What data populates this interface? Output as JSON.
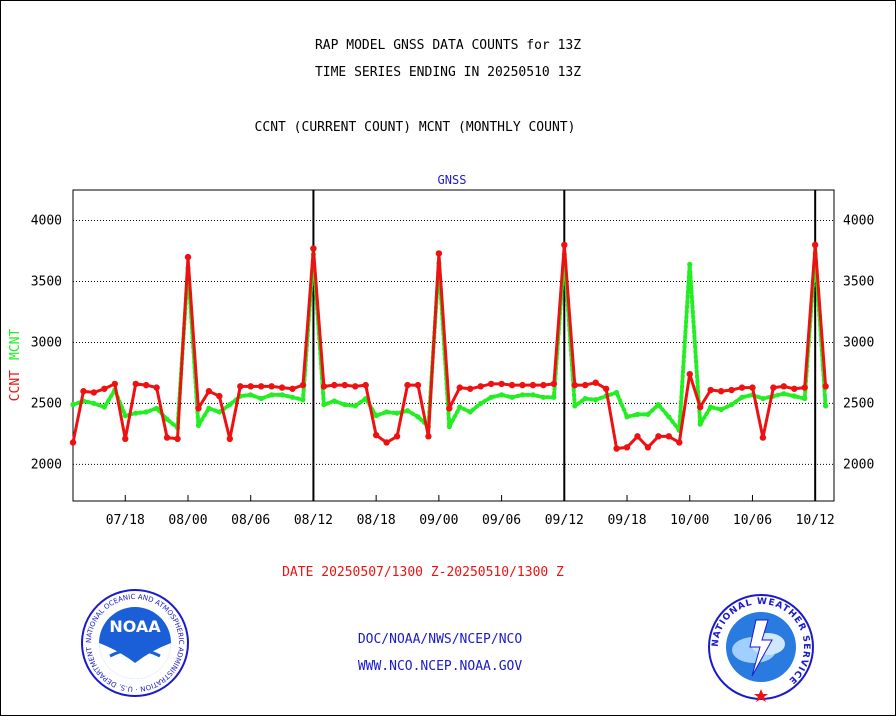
{
  "titles": {
    "line1": "RAP MODEL GNSS DATA COUNTS for 13Z",
    "line2": "TIME SERIES ENDING IN 20250510 13Z",
    "line3": "CCNT (CURRENT COUNT) MCNT (MONTHLY COUNT)"
  },
  "footer": {
    "date_range": "DATE 20250507/1300 Z-20250510/1300 Z",
    "credit_line1": "DOC/NOAA/NWS/NCEP/NCO",
    "credit_line2": "WWW.NCO.NCEP.NOAA.GOV"
  },
  "logos": {
    "noaa": "NOAA",
    "noaa_ring": "NATIONAL OCEANIC AND ATMOSPHERIC ADMINISTRATION · U.S. DEPARTMENT OF COMMERCE ·",
    "nws_ring": "NATIONAL WEATHER SERVICE"
  },
  "chart_data": {
    "type": "line",
    "panel_label": "GNSS",
    "ylabel_left": "CCNT",
    "ylabel_right": "MCNT",
    "ylim": [
      1700,
      4250
    ],
    "yticks": [
      2000,
      2500,
      3000,
      3500,
      4000
    ],
    "x_tick_labels": [
      "07/18",
      "08/00",
      "08/06",
      "08/12",
      "08/18",
      "09/00",
      "09/06",
      "09/12",
      "09/18",
      "10/00",
      "10/06",
      "10/12"
    ],
    "x_tick_hours": [
      5,
      11,
      17,
      23,
      29,
      35,
      41,
      47,
      53,
      59,
      65,
      71
    ],
    "x_range_hours": [
      0,
      72.8
    ],
    "day_boundaries_hours": [
      23,
      47,
      71
    ],
    "grid": "horizontal dotted",
    "series": [
      {
        "name": "CCNT",
        "color": "#ee1111",
        "values": [
          2180,
          2600,
          2590,
          2620,
          2660,
          2210,
          2660,
          2650,
          2630,
          2220,
          2210,
          3700,
          2460,
          2600,
          2560,
          2210,
          2640,
          2640,
          2640,
          2640,
          2630,
          2620,
          2650,
          3770,
          2640,
          2650,
          2650,
          2640,
          2650,
          2240,
          2180,
          2230,
          2650,
          2650,
          2230,
          3730,
          2460,
          2630,
          2620,
          2640,
          2660,
          2660,
          2650,
          2650,
          2650,
          2650,
          2660,
          3800,
          2650,
          2650,
          2670,
          2620,
          2130,
          2140,
          2230,
          2140,
          2230,
          2230,
          2180,
          2740,
          2470,
          2610,
          2600,
          2610,
          2630,
          2630,
          2220,
          2630,
          2640,
          2620,
          2630,
          3800,
          2640
        ]
      },
      {
        "name": "MCNT",
        "color": "#22ee22",
        "values": [
          2490,
          2520,
          2500,
          2470,
          2610,
          2400,
          2420,
          2430,
          2460,
          2370,
          2300,
          3610,
          2320,
          2460,
          2430,
          2490,
          2560,
          2570,
          2540,
          2570,
          2570,
          2550,
          2530,
          3720,
          2490,
          2520,
          2490,
          2480,
          2540,
          2400,
          2430,
          2420,
          2440,
          2390,
          2310,
          3650,
          2310,
          2470,
          2430,
          2500,
          2550,
          2570,
          2550,
          2570,
          2570,
          2550,
          2550,
          3720,
          2480,
          2540,
          2530,
          2560,
          2590,
          2390,
          2410,
          2410,
          2490,
          2390,
          2280,
          3640,
          2330,
          2470,
          2450,
          2490,
          2550,
          2570,
          2540,
          2560,
          2580,
          2560,
          2540,
          3730,
          2480
        ]
      }
    ]
  }
}
